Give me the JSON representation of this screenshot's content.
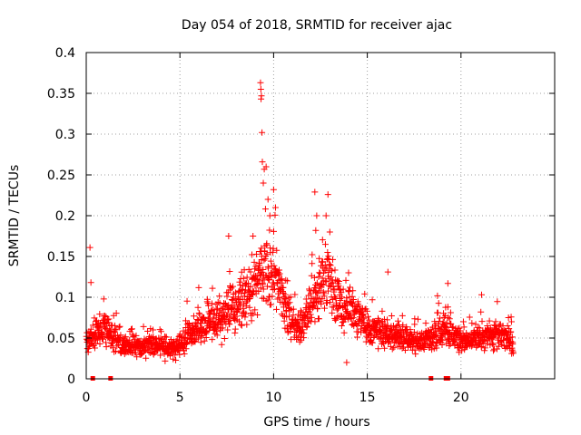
{
  "chart_data": {
    "type": "scatter",
    "title": "Day 054 of 2018, SRMTID for receiver ajac",
    "xlabel": "GPS time / hours",
    "ylabel": "SRMTID / TECUs",
    "xlim": [
      0,
      25
    ],
    "ylim": [
      0,
      0.4
    ],
    "x_ticks": [
      0,
      5,
      10,
      15,
      20
    ],
    "y_ticks": [
      0,
      0.05,
      0.1,
      0.15,
      0.2,
      0.25,
      0.3,
      0.35,
      0.4
    ],
    "x_tick_labels": [
      "0",
      "5",
      "10",
      "15",
      "20"
    ],
    "y_tick_labels": [
      "0",
      "0.05",
      "0.1",
      "0.15",
      "0.2",
      "0.25",
      "0.3",
      "0.35",
      "0.4"
    ],
    "grid": true,
    "marker": "+",
    "color": "#ff0000",
    "seed": 54,
    "sampling_step_hours": 0.012,
    "baseline_profile": [
      [
        0,
        0.045
      ],
      [
        0.5,
        0.055
      ],
      [
        1,
        0.065
      ],
      [
        1.5,
        0.05
      ],
      [
        2,
        0.042
      ],
      [
        3,
        0.04
      ],
      [
        4,
        0.04
      ],
      [
        4.8,
        0.035
      ],
      [
        5.5,
        0.055
      ],
      [
        6,
        0.06
      ],
      [
        6.5,
        0.065
      ],
      [
        7,
        0.07
      ],
      [
        7.5,
        0.08
      ],
      [
        8,
        0.09
      ],
      [
        8.5,
        0.1
      ],
      [
        9,
        0.11
      ],
      [
        9.4,
        0.14
      ],
      [
        9.8,
        0.13
      ],
      [
        10.2,
        0.12
      ],
      [
        10.6,
        0.09
      ],
      [
        11,
        0.07
      ],
      [
        11.5,
        0.06
      ],
      [
        12,
        0.09
      ],
      [
        12.5,
        0.11
      ],
      [
        13,
        0.13
      ],
      [
        13.4,
        0.1
      ],
      [
        13.8,
        0.08
      ],
      [
        14.2,
        0.09
      ],
      [
        14.6,
        0.07
      ],
      [
        15,
        0.06
      ],
      [
        16,
        0.055
      ],
      [
        17,
        0.05
      ],
      [
        18,
        0.045
      ],
      [
        18.5,
        0.05
      ],
      [
        19,
        0.06
      ],
      [
        19.5,
        0.055
      ],
      [
        20,
        0.045
      ],
      [
        21,
        0.05
      ],
      [
        22,
        0.055
      ],
      [
        22.8,
        0.045
      ]
    ],
    "peaks": [
      {
        "x": 9.3,
        "y": 0.363
      },
      {
        "x": 9.32,
        "y": 0.355
      },
      {
        "x": 9.35,
        "y": 0.347
      },
      {
        "x": 9.33,
        "y": 0.343
      },
      {
        "x": 9.38,
        "y": 0.302
      },
      {
        "x": 9.4,
        "y": 0.266
      },
      {
        "x": 9.5,
        "y": 0.257
      },
      {
        "x": 9.6,
        "y": 0.26
      },
      {
        "x": 9.45,
        "y": 0.24
      },
      {
        "x": 9.7,
        "y": 0.22
      },
      {
        "x": 9.8,
        "y": 0.2
      },
      {
        "x": 10.0,
        "y": 0.232
      },
      {
        "x": 10.1,
        "y": 0.21
      },
      {
        "x": 12.2,
        "y": 0.229
      },
      {
        "x": 12.3,
        "y": 0.2
      },
      {
        "x": 12.25,
        "y": 0.182
      },
      {
        "x": 12.9,
        "y": 0.226
      },
      {
        "x": 12.8,
        "y": 0.2
      },
      {
        "x": 13.0,
        "y": 0.18
      },
      {
        "x": 0.2,
        "y": 0.161
      },
      {
        "x": 0.25,
        "y": 0.118
      },
      {
        "x": 7.6,
        "y": 0.175
      },
      {
        "x": 8.9,
        "y": 0.175
      },
      {
        "x": 14.0,
        "y": 0.13
      },
      {
        "x": 16.1,
        "y": 0.131
      },
      {
        "x": 19.3,
        "y": 0.117
      },
      {
        "x": 21.1,
        "y": 0.103
      },
      {
        "x": 13.9,
        "y": 0.02
      }
    ],
    "gaps": [
      0.35,
      1.3,
      18.4,
      19.2,
      19.3
    ]
  }
}
